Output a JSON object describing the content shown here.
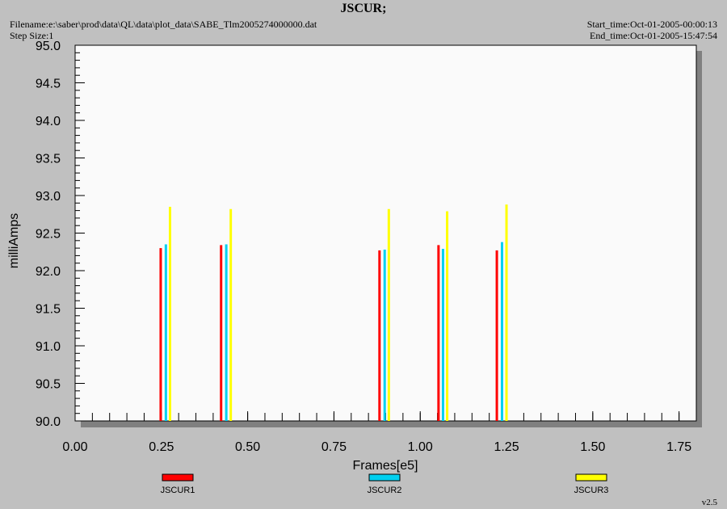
{
  "header": {
    "title": "JSCUR;",
    "filename": "Filename:e:\\saber\\prod\\data\\QL\\data\\plot_data\\SABE_Tlm2005274000000.dat",
    "step_size": "Step Size:1",
    "start_time": "Start_time:Oct-01-2005-00:00:13",
    "end_time": "End_time:Oct-01-2005-15:47:54"
  },
  "footer": {
    "version": "v2.5"
  },
  "chart_data": {
    "type": "bar",
    "title": "JSCUR;",
    "xlabel": "Frames[e5]",
    "ylabel": "milliAmps",
    "xlim": [
      0,
      1.8
    ],
    "ylim": [
      90.0,
      95.0
    ],
    "x_ticks": [
      "0.00",
      "0.25",
      "0.50",
      "0.75",
      "1.00",
      "1.25",
      "1.50",
      "1.75"
    ],
    "y_ticks": [
      "90.0",
      "90.5",
      "91.0",
      "91.5",
      "92.0",
      "92.5",
      "93.0",
      "93.5",
      "94.0",
      "94.5",
      "95.0"
    ],
    "grid": false,
    "legend_position": "bottom",
    "series": [
      {
        "name": "JSCUR1",
        "color": "#ff0000",
        "x": [
          0.248,
          0.423,
          0.882,
          1.053,
          1.222
        ],
        "values": [
          92.3,
          92.34,
          92.27,
          92.34,
          92.27
        ]
      },
      {
        "name": "JSCUR2",
        "color": "#00d0f0",
        "x": [
          0.263,
          0.438,
          0.897,
          1.066,
          1.237
        ],
        "values": [
          92.35,
          92.35,
          92.28,
          92.29,
          92.38
        ]
      },
      {
        "name": "JSCUR3",
        "color": "#ffff00",
        "x": [
          0.275,
          0.451,
          0.909,
          1.078,
          1.25
        ],
        "values": [
          92.85,
          92.82,
          92.82,
          92.79,
          92.88
        ]
      }
    ]
  }
}
